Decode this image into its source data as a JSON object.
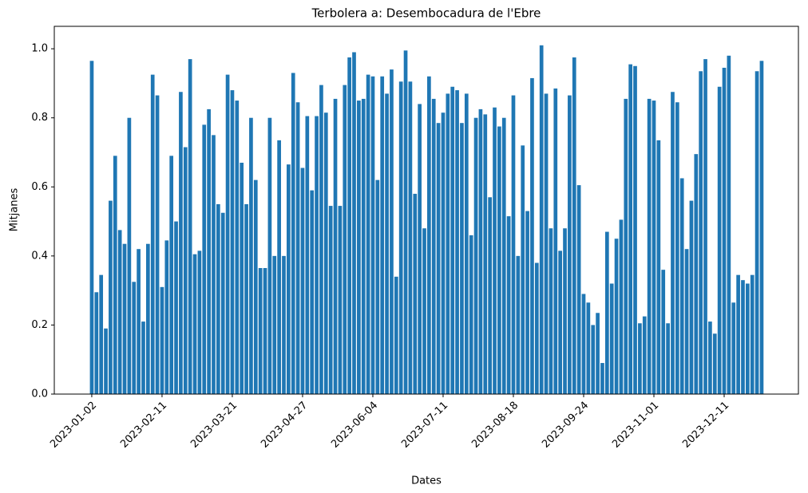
{
  "chart_data": {
    "type": "bar",
    "title": "Terbolera a: Desembocadura de l'Ebre",
    "xlabel": "Dates",
    "ylabel": "Mitjanes",
    "color": "#1f77b4",
    "categories": [
      "2023-01-02",
      null,
      null,
      null,
      null,
      null,
      null,
      null,
      null,
      null,
      null,
      null,
      null,
      null,
      null,
      "2023-02-11",
      null,
      null,
      null,
      null,
      null,
      null,
      null,
      null,
      null,
      null,
      null,
      null,
      null,
      null,
      "2023-03-21",
      null,
      null,
      null,
      null,
      null,
      null,
      null,
      null,
      null,
      null,
      null,
      null,
      null,
      null,
      "2023-04-27",
      null,
      null,
      null,
      null,
      null,
      null,
      null,
      null,
      null,
      null,
      null,
      null,
      null,
      null,
      "2023-06-04",
      null,
      null,
      null,
      null,
      null,
      null,
      null,
      null,
      null,
      null,
      null,
      null,
      null,
      null,
      "2023-07-11",
      null,
      null,
      null,
      null,
      null,
      null,
      null,
      null,
      null,
      null,
      null,
      null,
      null,
      null,
      "2023-08-18",
      null,
      null,
      null,
      null,
      null,
      null,
      null,
      null,
      null,
      null,
      null,
      null,
      null,
      null,
      "2023-09-24",
      null,
      null,
      null,
      null,
      null,
      null,
      null,
      null,
      null,
      null,
      null,
      null,
      null,
      null,
      "2023-11-01",
      null,
      null,
      null,
      null,
      null,
      null,
      null,
      null,
      null,
      null,
      null,
      null,
      null,
      null,
      "2023-12-11",
      null,
      null,
      null,
      null,
      null,
      null,
      null,
      null
    ],
    "values": [
      0.965,
      0.295,
      0.345,
      0.19,
      0.56,
      0.69,
      0.475,
      0.435,
      0.8,
      0.325,
      0.42,
      0.21,
      0.435,
      0.925,
      0.865,
      0.31,
      0.445,
      0.69,
      0.5,
      0.875,
      0.715,
      0.97,
      0.405,
      0.415,
      0.78,
      0.825,
      0.75,
      0.55,
      0.525,
      0.925,
      0.88,
      0.85,
      0.67,
      0.55,
      0.8,
      0.62,
      0.365,
      0.365,
      0.8,
      0.4,
      0.735,
      0.4,
      0.665,
      0.93,
      0.845,
      0.655,
      0.805,
      0.59,
      0.805,
      0.895,
      0.815,
      0.545,
      0.855,
      0.545,
      0.895,
      0.975,
      0.99,
      0.85,
      0.855,
      0.925,
      0.92,
      0.62,
      0.92,
      0.87,
      0.94,
      0.34,
      0.905,
      0.995,
      0.905,
      0.58,
      0.84,
      0.48,
      0.92,
      0.855,
      0.785,
      0.815,
      0.87,
      0.89,
      0.88,
      0.785,
      0.87,
      0.46,
      0.8,
      0.825,
      0.81,
      0.57,
      0.83,
      0.775,
      0.8,
      0.515,
      0.865,
      0.4,
      0.72,
      0.53,
      0.915,
      0.38,
      1.01,
      0.87,
      0.48,
      0.885,
      0.415,
      0.48,
      0.865,
      0.975,
      0.605,
      0.29,
      0.265,
      0.2,
      0.235,
      0.09,
      0.47,
      0.32,
      0.45,
      0.505,
      0.855,
      0.955,
      0.95,
      0.205,
      0.225,
      0.855,
      0.85,
      0.735,
      0.36,
      0.205,
      0.875,
      0.845,
      0.625,
      0.42,
      0.56,
      0.695,
      0.935,
      0.97,
      0.21,
      0.175,
      0.89,
      0.945,
      0.98,
      0.265,
      0.345,
      0.33,
      0.32,
      0.345,
      0.935,
      0.965
    ],
    "ylim": [
      0,
      1.065
    ],
    "yticks": [
      {
        "value": 0,
        "label": "0.0"
      },
      {
        "value": 0.2,
        "label": "0.2"
      },
      {
        "value": 0.4,
        "label": "0.4"
      },
      {
        "value": 0.6,
        "label": "0.6"
      },
      {
        "value": 0.8,
        "label": "0.8"
      },
      {
        "value": 1.0,
        "label": "1.0"
      }
    ]
  }
}
